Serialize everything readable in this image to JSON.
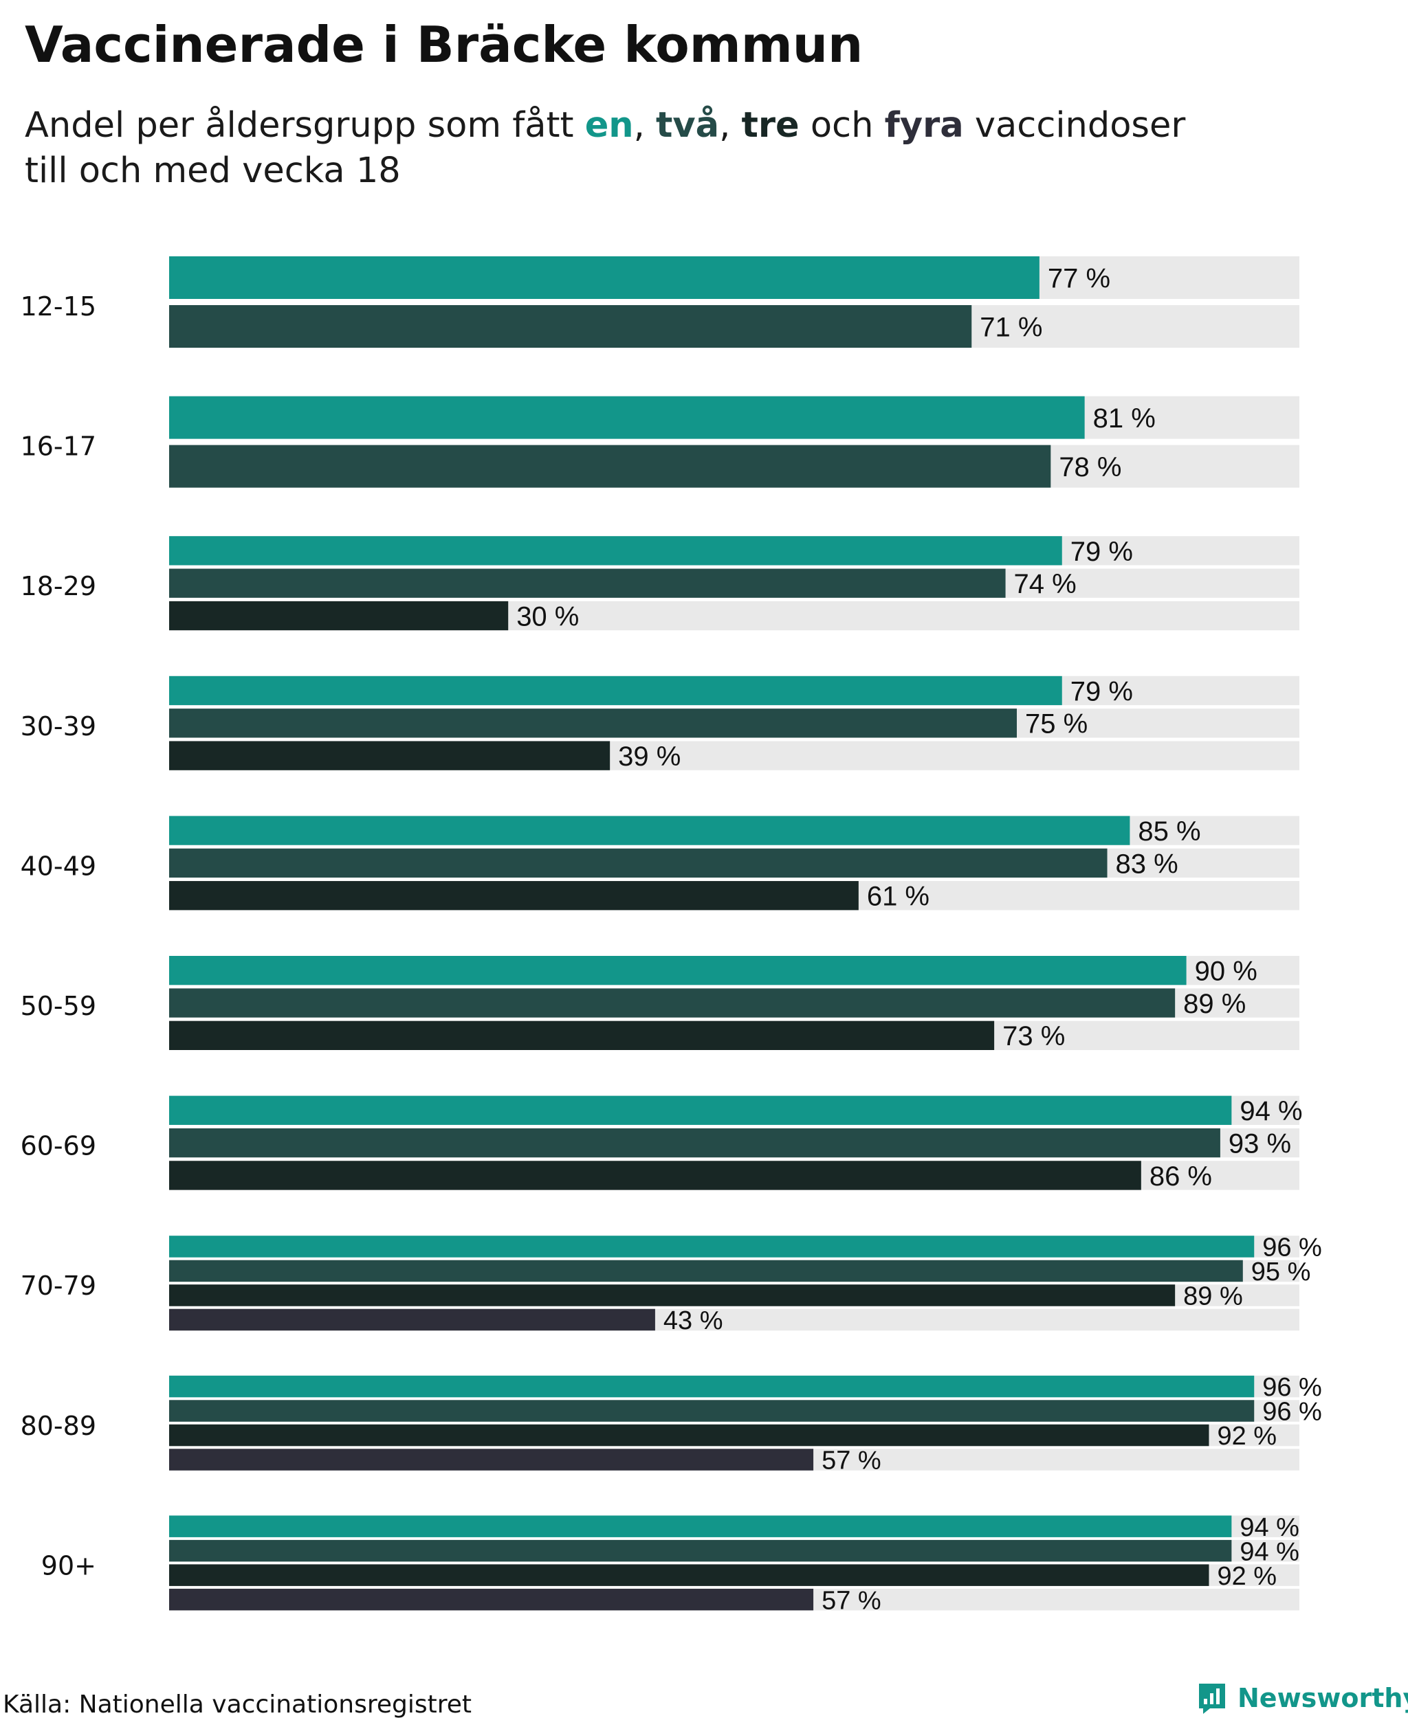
{
  "header": {
    "title": "Vaccinerade i Bräcke kommun",
    "subtitle_pre": "Andel per åldersgrupp som fått ",
    "kw1": "en",
    "sep1": ", ",
    "kw2": "två",
    "sep2": ", ",
    "kw3": "tre",
    "sep3": " och ",
    "kw4": "fyra",
    "subtitle_post": " vaccindoser",
    "subtitle_line2": "till och med vecka 18"
  },
  "footer": {
    "source": "Källa: Nationella vaccinationsregistret",
    "brand": "Newsworthy"
  },
  "colors": {
    "en": "#12968a",
    "tva": "#254b48",
    "tre": "#182725",
    "fyra": "#2e2e3a",
    "track": "#e9e9e9"
  },
  "chart_data": {
    "type": "bar",
    "orientation": "horizontal",
    "title": "Vaccinerade i Bräcke kommun",
    "subtitle": "Andel per åldersgrupp som fått en, två, tre och fyra vaccindoser till och med vecka 18",
    "xlim": [
      0,
      100
    ],
    "unit_suffix": " %",
    "series_names": [
      "en",
      "två",
      "tre",
      "fyra"
    ],
    "groups": [
      {
        "label": "12-15",
        "values": [
          77,
          71
        ]
      },
      {
        "label": "16-17",
        "values": [
          81,
          78
        ]
      },
      {
        "label": "18-29",
        "values": [
          79,
          74,
          30
        ]
      },
      {
        "label": "30-39",
        "values": [
          79,
          75,
          39
        ]
      },
      {
        "label": "40-49",
        "values": [
          85,
          83,
          61
        ]
      },
      {
        "label": "50-59",
        "values": [
          90,
          89,
          73
        ]
      },
      {
        "label": "60-69",
        "values": [
          94,
          93,
          86
        ]
      },
      {
        "label": "70-79",
        "values": [
          96,
          95,
          89,
          43
        ]
      },
      {
        "label": "80-89",
        "values": [
          96,
          96,
          92,
          57
        ]
      },
      {
        "label": "90+",
        "values": [
          94,
          94,
          92,
          57
        ]
      }
    ]
  }
}
